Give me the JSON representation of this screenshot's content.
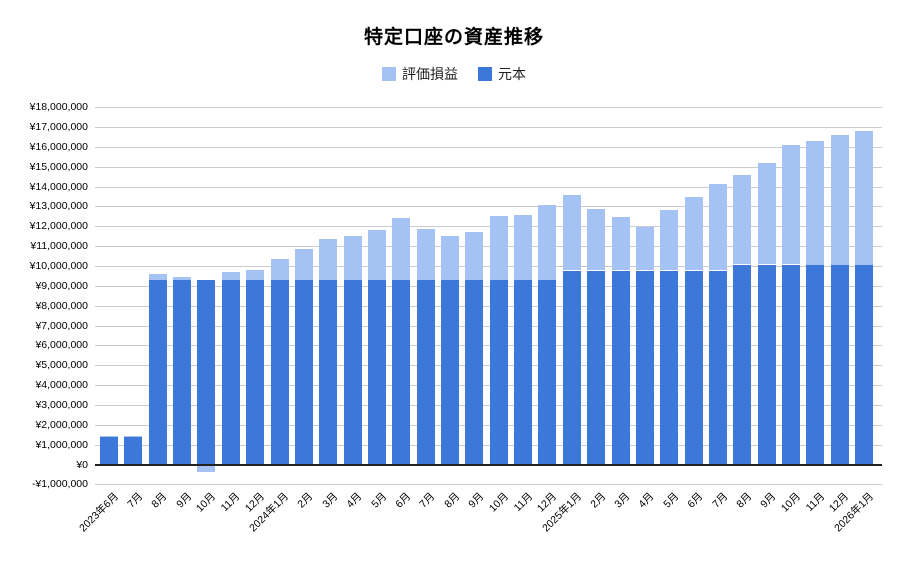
{
  "chart_data": {
    "type": "bar",
    "stacked": true,
    "title": "特定口座の資産推移",
    "legend_position": "top",
    "grid": true,
    "currency": "¥",
    "ylim": [
      -1000000,
      18000000
    ],
    "ytick_interval": 1000000,
    "categories": [
      "2023年6月",
      "7月",
      "8月",
      "9月",
      "10月",
      "11月",
      "12月",
      "2024年1月",
      "2月",
      "3月",
      "4月",
      "5月",
      "6月",
      "7月",
      "8月",
      "9月",
      "10月",
      "11月",
      "12月",
      "2025年1月",
      "2月",
      "3月",
      "4月",
      "5月",
      "6月",
      "7月",
      "8月",
      "9月",
      "10月",
      "11月",
      "12月",
      "2026年1月"
    ],
    "series": [
      {
        "name": "評価損益",
        "color": "#a4c2f4",
        "values": [
          50000,
          50000,
          300000,
          150000,
          -350000,
          450000,
          550000,
          1100000,
          1600000,
          2100000,
          2250000,
          2550000,
          3150000,
          2600000,
          2250000,
          2450000,
          3250000,
          3300000,
          3800000,
          3800000,
          3100000,
          2700000,
          2200000,
          3050000,
          3700000,
          4350000,
          4500000,
          5100000,
          6000000,
          6250000,
          6550000,
          6750000
        ]
      },
      {
        "name": "元本",
        "color": "#3c78d8",
        "values": [
          1400000,
          1400000,
          9300000,
          9300000,
          9300000,
          9300000,
          9300000,
          9300000,
          9300000,
          9300000,
          9300000,
          9300000,
          9300000,
          9300000,
          9300000,
          9300000,
          9300000,
          9300000,
          9300000,
          9800000,
          9800000,
          9800000,
          9800000,
          9800000,
          9800000,
          9800000,
          10100000,
          10100000,
          10100000,
          10100000,
          10100000,
          10100000
        ]
      }
    ],
    "y_tick_values": [
      -1000000,
      0,
      1000000,
      2000000,
      3000000,
      4000000,
      5000000,
      6000000,
      7000000,
      8000000,
      9000000,
      10000000,
      11000000,
      12000000,
      13000000,
      14000000,
      15000000,
      16000000,
      17000000,
      18000000
    ],
    "y_tick_labels": [
      "-¥1,000,000",
      "¥0",
      "¥1,000,000",
      "¥2,000,000",
      "¥3,000,000",
      "¥4,000,000",
      "¥5,000,000",
      "¥6,000,000",
      "¥7,000,000",
      "¥8,000,000",
      "¥9,000,000",
      "¥10,000,000",
      "¥11,000,000",
      "¥12,000,000",
      "¥13,000,000",
      "¥14,000,000",
      "¥15,000,000",
      "¥16,000,000",
      "¥17,000,000",
      "¥18,000,000"
    ],
    "colors": {
      "background": "#ffffff",
      "gridline": "#cccccc",
      "axis_line": "#212121",
      "text": "#000000"
    }
  }
}
